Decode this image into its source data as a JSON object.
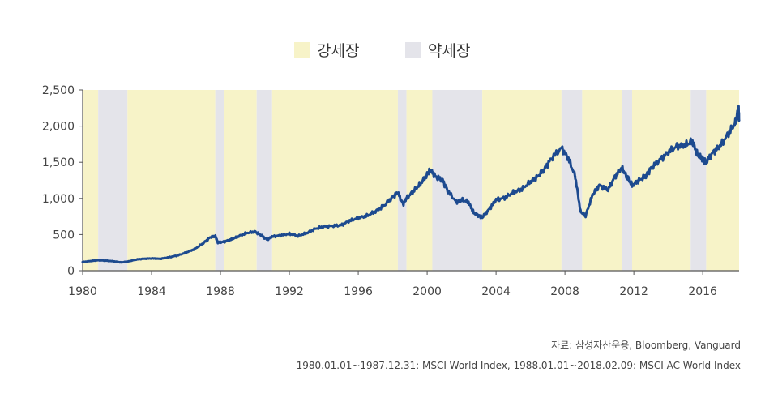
{
  "chart_data": {
    "type": "line",
    "title": "",
    "xlabel": "",
    "ylabel": "",
    "xlim": [
      1980,
      2018.11
    ],
    "ylim": [
      0,
      2500
    ],
    "grid": false,
    "legend_position": "top-center",
    "legend": [
      {
        "label": "강세장",
        "color": "#f7f3c8"
      },
      {
        "label": "약세장",
        "color": "#e4e4ea"
      }
    ],
    "x_ticks": [
      1980,
      1984,
      1988,
      1992,
      1996,
      2000,
      2004,
      2008,
      2012,
      2016
    ],
    "y_ticks": [
      {
        "value": 0,
        "label": "0"
      },
      {
        "value": 500,
        "label": "500"
      },
      {
        "value": 1000,
        "label": "1,000"
      },
      {
        "value": 1500,
        "label": "1,500"
      },
      {
        "value": 2000,
        "label": "2,000"
      },
      {
        "value": 2500,
        "label": "2,500"
      }
    ],
    "regimes": [
      {
        "type": "bull",
        "start": 1980.0,
        "end": 1980.9
      },
      {
        "type": "bear",
        "start": 1980.9,
        "end": 1982.6
      },
      {
        "type": "bull",
        "start": 1982.6,
        "end": 1987.7
      },
      {
        "type": "bear",
        "start": 1987.7,
        "end": 1988.2
      },
      {
        "type": "bull",
        "start": 1988.2,
        "end": 1990.1
      },
      {
        "type": "bear",
        "start": 1990.1,
        "end": 1991.0
      },
      {
        "type": "bull",
        "start": 1991.0,
        "end": 1998.3
      },
      {
        "type": "bear",
        "start": 1998.3,
        "end": 1998.8
      },
      {
        "type": "bull",
        "start": 1998.8,
        "end": 2000.3
      },
      {
        "type": "bear",
        "start": 2000.3,
        "end": 2003.2
      },
      {
        "type": "bull",
        "start": 2003.2,
        "end": 2007.8
      },
      {
        "type": "bear",
        "start": 2007.8,
        "end": 2009.0
      },
      {
        "type": "bull",
        "start": 2009.0,
        "end": 2011.3
      },
      {
        "type": "bear",
        "start": 2011.3,
        "end": 2011.9
      },
      {
        "type": "bull",
        "start": 2011.9,
        "end": 2015.3
      },
      {
        "type": "bear",
        "start": 2015.3,
        "end": 2016.2
      },
      {
        "type": "bull",
        "start": 2016.2,
        "end": 2018.11
      }
    ],
    "series": [
      {
        "color": "#1d4a8f",
        "points": [
          [
            1980.0,
            120
          ],
          [
            1980.5,
            135
          ],
          [
            1980.9,
            145
          ],
          [
            1981.3,
            140
          ],
          [
            1981.8,
            130
          ],
          [
            1982.2,
            115
          ],
          [
            1982.6,
            125
          ],
          [
            1983.0,
            150
          ],
          [
            1983.5,
            165
          ],
          [
            1984.0,
            170
          ],
          [
            1984.5,
            165
          ],
          [
            1985.0,
            185
          ],
          [
            1985.5,
            210
          ],
          [
            1986.0,
            250
          ],
          [
            1986.5,
            300
          ],
          [
            1987.0,
            380
          ],
          [
            1987.4,
            460
          ],
          [
            1987.7,
            480
          ],
          [
            1987.85,
            390
          ],
          [
            1988.2,
            400
          ],
          [
            1988.6,
            430
          ],
          [
            1989.0,
            470
          ],
          [
            1989.5,
            520
          ],
          [
            1990.0,
            540
          ],
          [
            1990.3,
            500
          ],
          [
            1990.7,
            430
          ],
          [
            1991.0,
            470
          ],
          [
            1991.5,
            490
          ],
          [
            1992.0,
            510
          ],
          [
            1992.5,
            480
          ],
          [
            1993.0,
            520
          ],
          [
            1993.5,
            580
          ],
          [
            1994.0,
            610
          ],
          [
            1994.5,
            620
          ],
          [
            1995.0,
            630
          ],
          [
            1995.5,
            690
          ],
          [
            1996.0,
            730
          ],
          [
            1996.5,
            760
          ],
          [
            1997.0,
            820
          ],
          [
            1997.5,
            900
          ],
          [
            1998.0,
            1020
          ],
          [
            1998.3,
            1080
          ],
          [
            1998.6,
            920
          ],
          [
            1998.8,
            1000
          ],
          [
            1999.2,
            1100
          ],
          [
            1999.6,
            1200
          ],
          [
            2000.0,
            1330
          ],
          [
            2000.2,
            1390
          ],
          [
            2000.5,
            1300
          ],
          [
            2000.9,
            1250
          ],
          [
            2001.2,
            1100
          ],
          [
            2001.7,
            950
          ],
          [
            2002.0,
            980
          ],
          [
            2002.4,
            950
          ],
          [
            2002.7,
            800
          ],
          [
            2003.0,
            760
          ],
          [
            2003.2,
            740
          ],
          [
            2003.6,
            850
          ],
          [
            2004.0,
            980
          ],
          [
            2004.5,
            1010
          ],
          [
            2005.0,
            1080
          ],
          [
            2005.5,
            1130
          ],
          [
            2006.0,
            1230
          ],
          [
            2006.4,
            1300
          ],
          [
            2006.8,
            1400
          ],
          [
            2007.2,
            1550
          ],
          [
            2007.8,
            1700
          ],
          [
            2008.2,
            1550
          ],
          [
            2008.6,
            1300
          ],
          [
            2008.9,
            820
          ],
          [
            2009.2,
            760
          ],
          [
            2009.6,
            1050
          ],
          [
            2010.0,
            1180
          ],
          [
            2010.5,
            1120
          ],
          [
            2010.9,
            1300
          ],
          [
            2011.3,
            1420
          ],
          [
            2011.6,
            1300
          ],
          [
            2011.9,
            1180
          ],
          [
            2012.3,
            1250
          ],
          [
            2012.7,
            1310
          ],
          [
            2013.0,
            1420
          ],
          [
            2013.5,
            1530
          ],
          [
            2014.0,
            1640
          ],
          [
            2014.5,
            1720
          ],
          [
            2015.0,
            1740
          ],
          [
            2015.4,
            1790
          ],
          [
            2015.7,
            1600
          ],
          [
            2016.0,
            1550
          ],
          [
            2016.2,
            1500
          ],
          [
            2016.6,
            1640
          ],
          [
            2017.0,
            1720
          ],
          [
            2017.5,
            1900
          ],
          [
            2017.9,
            2050
          ],
          [
            2018.08,
            2240
          ],
          [
            2018.11,
            2080
          ]
        ]
      }
    ]
  },
  "source_lines": [
    "자료: 삼성자산운용, Bloomberg, Vanguard",
    "1980.01.01~1987.12.31: MSCI World Index, 1988.01.01~2018.02.09: MSCI AC World Index"
  ],
  "colors": {
    "bull": "#f7f3c8",
    "bear": "#e4e4ea",
    "line": "#1d4a8f",
    "axis": "#555555"
  }
}
